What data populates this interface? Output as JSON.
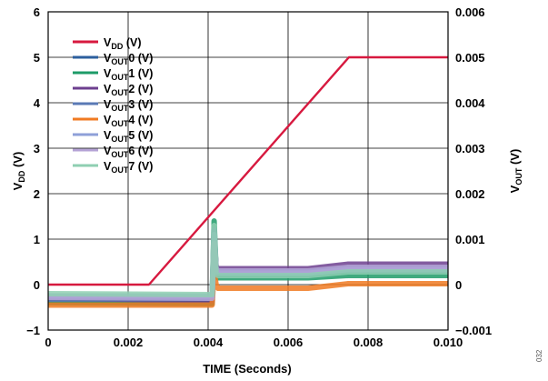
{
  "chart_data": {
    "type": "line",
    "title": "",
    "xlabel": "TIME (Seconds)",
    "ylabel_left": {
      "main": "V",
      "sub": "DD",
      "rest": " (V)"
    },
    "ylabel_right": {
      "main": "V",
      "sub": "OUT",
      "rest": " (V)"
    },
    "xlim": [
      0,
      0.01
    ],
    "ylim_left": [
      -1,
      6
    ],
    "ylim_right": [
      -0.001,
      0.006
    ],
    "grid": true,
    "legend_position": "top-left",
    "x_ticks": [
      "0",
      "0.002",
      "0.004",
      "0.006",
      "0.008",
      "0.010"
    ],
    "y_ticks_left": [
      "−1",
      "0",
      "1",
      "2",
      "3",
      "4",
      "5",
      "6"
    ],
    "y_ticks_right": [
      "−0.001",
      "0",
      "0.001",
      "0.002",
      "0.003",
      "0.004",
      "0.005",
      "0.006"
    ],
    "figure_id": "032",
    "series": [
      {
        "name": {
          "main": "V",
          "sub": "DD",
          "rest": " (V)"
        },
        "axis": "left",
        "color": "#d7193f",
        "x": [
          0,
          0.00252,
          0.00752,
          0.01
        ],
        "y": [
          0,
          0,
          5,
          5
        ]
      },
      {
        "name": {
          "main": "V",
          "sub": "OUT",
          "rest": "0 (V)"
        },
        "axis": "right",
        "color": "#2c5f9e",
        "x": [
          0,
          0.0041,
          0.00415,
          0.0042,
          0.00425,
          0.0065,
          0.0075,
          0.01
        ],
        "y": [
          -0.00038,
          -0.0004,
          0.00085,
          0.00035,
          0.00022,
          0.00022,
          0.0003,
          0.00028
        ]
      },
      {
        "name": {
          "main": "V",
          "sub": "OUT",
          "rest": "1 (V)"
        },
        "axis": "right",
        "color": "#1e9b68",
        "x": [
          0,
          0.0041,
          0.00415,
          0.0042,
          0.00425,
          0.0065,
          0.0075,
          0.01
        ],
        "y": [
          -0.0004,
          -0.00042,
          0.0014,
          0.0003,
          0.00015,
          0.00015,
          0.0002,
          0.0002
        ]
      },
      {
        "name": {
          "main": "V",
          "sub": "OUT",
          "rest": "2 (V)"
        },
        "axis": "right",
        "color": "#6d3f8f",
        "x": [
          0,
          0.0041,
          0.00415,
          0.0042,
          0.00425,
          0.0065,
          0.0075,
          0.01
        ],
        "y": [
          -0.0003,
          -0.00035,
          0.001,
          0.0004,
          0.00035,
          0.00035,
          0.00045,
          0.00045
        ]
      },
      {
        "name": {
          "main": "V",
          "sub": "OUT",
          "rest": "3 (V)"
        },
        "axis": "right",
        "color": "#5a79b5",
        "x": [
          0,
          0.0041,
          0.00415,
          0.0042,
          0.00425,
          0.0065,
          0.0075,
          0.01
        ],
        "y": [
          -0.00032,
          -0.0003,
          0.0012,
          0.0003,
          0.00028,
          0.00028,
          0.00035,
          0.00035
        ]
      },
      {
        "name": {
          "main": "V",
          "sub": "OUT",
          "rest": "4 (V)"
        },
        "axis": "right",
        "color": "#f07a22",
        "x": [
          0,
          0.0041,
          0.00415,
          0.0042,
          0.00425,
          0.0065,
          0.0075,
          0.01
        ],
        "y": [
          -0.00045,
          -0.00045,
          0.0003,
          0.0,
          -8e-05,
          -8e-05,
          2e-05,
          2e-05
        ]
      },
      {
        "name": {
          "main": "V",
          "sub": "OUT",
          "rest": "5 (V)"
        },
        "axis": "right",
        "color": "#8fa0d8",
        "x": [
          0,
          0.0041,
          0.00415,
          0.0042,
          0.00425,
          0.0065,
          0.0075,
          0.01
        ],
        "y": [
          -0.00025,
          -0.00025,
          0.0011,
          0.00032,
          0.00025,
          0.00025,
          0.00033,
          0.00033
        ]
      },
      {
        "name": {
          "main": "V",
          "sub": "OUT",
          "rest": "6 (V)"
        },
        "axis": "right",
        "color": "#b5a3d6",
        "x": [
          0,
          0.0041,
          0.00415,
          0.0042,
          0.00425,
          0.0065,
          0.0075,
          0.01
        ],
        "y": [
          -0.00028,
          -0.0003,
          0.0009,
          0.00034,
          0.0003,
          0.0003,
          0.00038,
          0.00038
        ]
      },
      {
        "name": {
          "main": "V",
          "sub": "OUT",
          "rest": "7 (V)"
        },
        "axis": "right",
        "color": "#8fcfb2",
        "x": [
          0,
          0.0041,
          0.00415,
          0.0042,
          0.00425,
          0.0065,
          0.0075,
          0.01
        ],
        "y": [
          -0.0002,
          -0.00022,
          0.0013,
          0.00025,
          0.0002,
          0.0002,
          0.00028,
          0.00028
        ]
      }
    ]
  }
}
